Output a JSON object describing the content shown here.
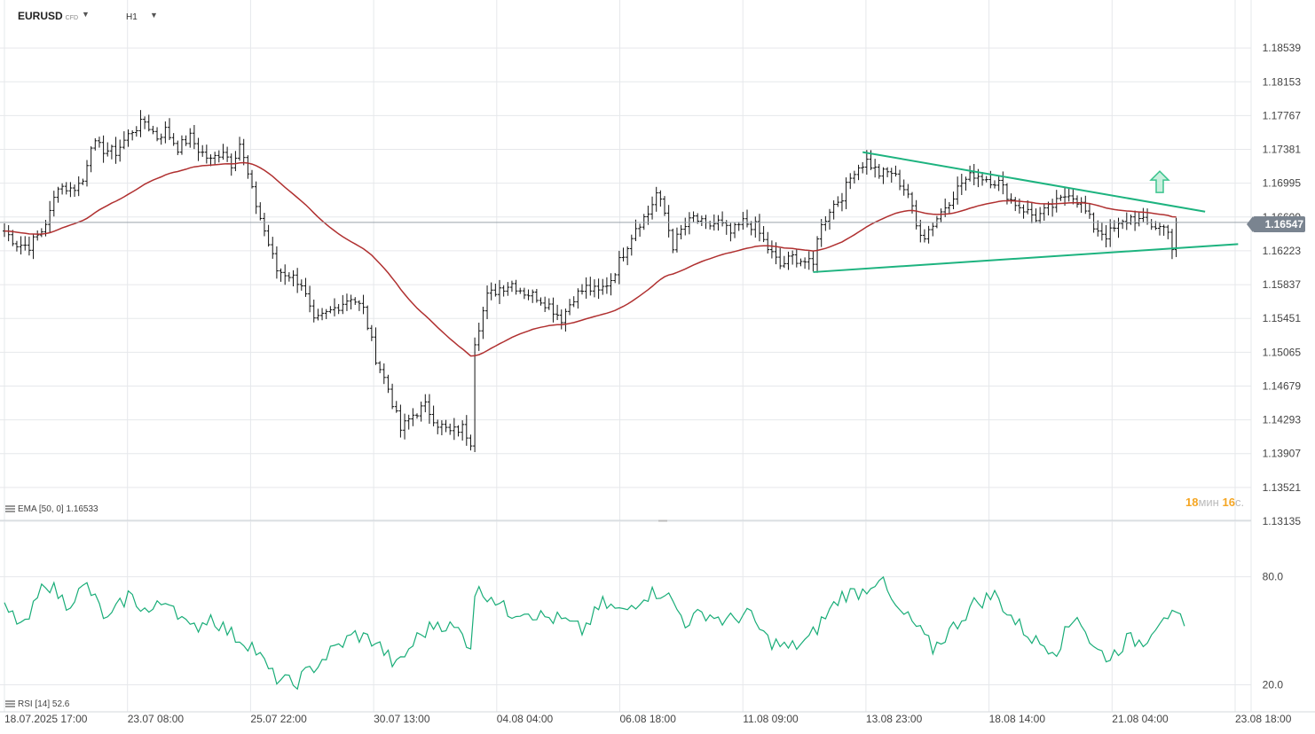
{
  "header": {
    "symbol": "EURUSD",
    "instrument_type": "CFD",
    "timeframe": "H1"
  },
  "price_badge": "1.16547",
  "ema_legend": "EMA [50, 0] 1.16533",
  "rsi_legend": "RSI [14] 52.6",
  "countdown": {
    "minutes": "18",
    "min_unit": "мин",
    "seconds": "16",
    "sec_unit": "с."
  },
  "colors": {
    "candles": "#111111",
    "ema": "#b03030",
    "trendlines": "#1db37f",
    "arrow": "#3cc48e",
    "rsi": "#19ad78",
    "grid": "#e6e8eb",
    "price_badge": "#7a8490"
  },
  "chart_data": [
    {
      "type": "candlestick",
      "symbol": "EURUSD",
      "timeframe": "H1",
      "y_ticks": [
        "1.18539",
        "1.18153",
        "1.17767",
        "1.17381",
        "1.16995",
        "1.16609",
        "1.16223",
        "1.15837",
        "1.15451",
        "1.15065",
        "1.14679",
        "1.14293",
        "1.13907",
        "1.13521",
        "1.13135"
      ],
      "ylim": [
        1.13135,
        1.18925
      ],
      "x_tick_labels": [
        "18.07.2025  17:00",
        "23.07  08:00",
        "25.07  22:00",
        "30.07  13:00",
        "04.08  04:00",
        "06.08  18:00",
        "11.08  09:00",
        "13.08  23:00",
        "18.08  14:00",
        "21.08  04:00",
        "23.08  18:00"
      ],
      "close_path": [
        [
          0,
          1.1645
        ],
        [
          3,
          1.163
        ],
        [
          6,
          1.1628
        ],
        [
          9,
          1.1645
        ],
        [
          11,
          1.1665
        ],
        [
          13,
          1.1698
        ],
        [
          16,
          1.1692
        ],
        [
          19,
          1.1702
        ],
        [
          21,
          1.1745
        ],
        [
          24,
          1.1738
        ],
        [
          27,
          1.1735
        ],
        [
          29,
          1.1748
        ],
        [
          31,
          1.176
        ],
        [
          34,
          1.177
        ],
        [
          37,
          1.1752
        ],
        [
          39,
          1.176
        ],
        [
          42,
          1.174
        ],
        [
          45,
          1.1752
        ],
        [
          47,
          1.1738
        ],
        [
          50,
          1.1725
        ],
        [
          53,
          1.1738
        ],
        [
          55,
          1.1722
        ],
        [
          57,
          1.1745
        ],
        [
          60,
          1.169
        ],
        [
          63,
          1.1645
        ],
        [
          66,
          1.16
        ],
        [
          69,
          1.1595
        ],
        [
          72,
          1.1585
        ],
        [
          75,
          1.154
        ],
        [
          78,
          1.155
        ],
        [
          81,
          1.156
        ],
        [
          84,
          1.157
        ],
        [
          87,
          1.1555
        ],
        [
          90,
          1.15
        ],
        [
          93,
          1.1465
        ],
        [
          96,
          1.1418
        ],
        [
          99,
          1.1435
        ],
        [
          102,
          1.1445
        ],
        [
          105,
          1.1425
        ],
        [
          108,
          1.1415
        ],
        [
          111,
          1.142
        ],
        [
          113,
          1.1405
        ],
        [
          114,
          1.152
        ],
        [
          117,
          1.157
        ],
        [
          120,
          1.158
        ],
        [
          123,
          1.1585
        ],
        [
          126,
          1.1575
        ],
        [
          129,
          1.157
        ],
        [
          132,
          1.156
        ],
        [
          135,
          1.1545
        ],
        [
          138,
          1.157
        ],
        [
          141,
          1.158
        ],
        [
          144,
          1.1575
        ],
        [
          147,
          1.159
        ],
        [
          150,
          1.162
        ],
        [
          153,
          1.165
        ],
        [
          156,
          1.1665
        ],
        [
          158,
          1.1688
        ],
        [
          160,
          1.1665
        ],
        [
          162,
          1.1628
        ],
        [
          164,
          1.1645
        ],
        [
          167,
          1.166
        ],
        [
          170,
          1.165
        ],
        [
          173,
          1.1655
        ],
        [
          176,
          1.1642
        ],
        [
          179,
          1.1655
        ],
        [
          182,
          1.165
        ],
        [
          185,
          1.1625
        ],
        [
          188,
          1.1605
        ],
        [
          191,
          1.1615
        ],
        [
          194,
          1.161
        ],
        [
          196,
          1.1605
        ],
        [
          197,
          1.164
        ],
        [
          200,
          1.167
        ],
        [
          203,
          1.1685
        ],
        [
          206,
          1.1715
        ],
        [
          209,
          1.1725
        ],
        [
          212,
          1.171
        ],
        [
          215,
          1.1712
        ],
        [
          217,
          1.17
        ],
        [
          219,
          1.1688
        ],
        [
          221,
          1.165
        ],
        [
          223,
          1.164
        ],
        [
          226,
          1.166
        ],
        [
          229,
          1.168
        ],
        [
          232,
          1.17
        ],
        [
          235,
          1.171
        ],
        [
          238,
          1.1705
        ],
        [
          241,
          1.17
        ],
        [
          244,
          1.168
        ],
        [
          247,
          1.167
        ],
        [
          250,
          1.166
        ],
        [
          253,
          1.167
        ],
        [
          256,
          1.168
        ],
        [
          258,
          1.169
        ],
        [
          261,
          1.1675
        ],
        [
          264,
          1.165
        ],
        [
          267,
          1.164
        ],
        [
          270,
          1.165
        ],
        [
          273,
          1.166
        ],
        [
          276,
          1.1655
        ],
        [
          279,
          1.165
        ],
        [
          282,
          1.1648
        ],
        [
          283,
          1.1625
        ],
        [
          284,
          1.1652
        ]
      ],
      "ema_period": 50,
      "ema_last": 1.16533,
      "last_price": 1.16547,
      "trendlines": [
        {
          "name": "upper",
          "points": [
            [
              208,
              1.1735
            ],
            [
              291,
              1.1667
            ]
          ]
        },
        {
          "name": "lower",
          "points": [
            [
              196,
              1.1598
            ],
            [
              299,
              1.163
            ]
          ]
        }
      ],
      "annotation": {
        "type": "arrow-up",
        "at": [
          280,
          1.1701
        ]
      },
      "current_price_line": 1.16547,
      "grid": true
    },
    {
      "type": "line",
      "indicator": "RSI",
      "period": 14,
      "last_value": 52.6,
      "y_ticks": [
        "80.0",
        "20.0"
      ],
      "ylim": [
        5,
        102
      ],
      "values_path": [
        [
          0,
          62
        ],
        [
          5,
          52
        ],
        [
          10,
          78
        ],
        [
          15,
          65
        ],
        [
          20,
          75
        ],
        [
          25,
          55
        ],
        [
          30,
          70
        ],
        [
          35,
          60
        ],
        [
          40,
          68
        ],
        [
          45,
          50
        ],
        [
          50,
          58
        ],
        [
          55,
          48
        ],
        [
          60,
          42
        ],
        [
          65,
          25
        ],
        [
          70,
          20
        ],
        [
          75,
          30
        ],
        [
          80,
          40
        ],
        [
          85,
          48
        ],
        [
          90,
          44
        ],
        [
          95,
          30
        ],
        [
          100,
          46
        ],
        [
          105,
          55
        ],
        [
          110,
          50
        ],
        [
          113,
          42
        ],
        [
          114,
          72
        ],
        [
          118,
          70
        ],
        [
          122,
          60
        ],
        [
          126,
          62
        ],
        [
          130,
          58
        ],
        [
          135,
          56
        ],
        [
          140,
          50
        ],
        [
          145,
          65
        ],
        [
          150,
          60
        ],
        [
          155,
          70
        ],
        [
          160,
          72
        ],
        [
          165,
          55
        ],
        [
          170,
          60
        ],
        [
          175,
          55
        ],
        [
          180,
          60
        ],
        [
          185,
          45
        ],
        [
          190,
          40
        ],
        [
          195,
          45
        ],
        [
          198,
          55
        ],
        [
          203,
          70
        ],
        [
          208,
          72
        ],
        [
          212,
          80
        ],
        [
          216,
          62
        ],
        [
          220,
          55
        ],
        [
          225,
          40
        ],
        [
          230,
          52
        ],
        [
          235,
          65
        ],
        [
          240,
          70
        ],
        [
          245,
          55
        ],
        [
          250,
          44
        ],
        [
          255,
          40
        ],
        [
          260,
          60
        ],
        [
          264,
          40
        ],
        [
          268,
          35
        ],
        [
          272,
          45
        ],
        [
          276,
          44
        ],
        [
          281,
          60
        ],
        [
          285,
          55
        ],
        [
          286,
          58
        ]
      ],
      "grid": true
    }
  ]
}
